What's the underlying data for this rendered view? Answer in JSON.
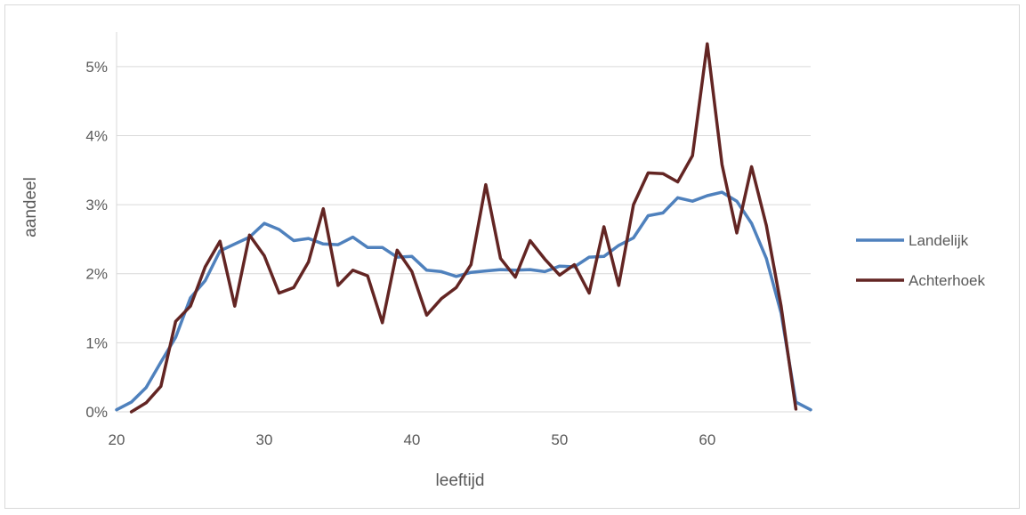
{
  "chart_data": {
    "type": "line",
    "title": "",
    "xlabel": "leeftijd",
    "ylabel": "aandeel",
    "xlim": [
      20,
      67
    ],
    "ylim": [
      0,
      5.5
    ],
    "x_ticks": [
      20,
      30,
      40,
      50,
      60
    ],
    "y_ticks": [
      0,
      1,
      2,
      3,
      4,
      5
    ],
    "x_tick_labels": [
      "20",
      "30",
      "40",
      "50",
      "60"
    ],
    "y_tick_labels": [
      "0%",
      "1%",
      "2%",
      "3%",
      "4%",
      "5%"
    ],
    "y_unit": "%",
    "grid": "horizontal",
    "legend_position": "right",
    "series": [
      {
        "name": "Landelijk",
        "color": "#4f81bd",
        "x": [
          20,
          21,
          22,
          23,
          24,
          25,
          26,
          27,
          28,
          29,
          30,
          31,
          32,
          33,
          34,
          35,
          36,
          37,
          38,
          39,
          40,
          41,
          42,
          43,
          44,
          45,
          46,
          47,
          48,
          49,
          50,
          51,
          52,
          53,
          54,
          55,
          56,
          57,
          58,
          59,
          60,
          61,
          62,
          63,
          64,
          65,
          66,
          67
        ],
        "values": [
          0.03,
          0.14,
          0.35,
          0.72,
          1.08,
          1.65,
          1.9,
          2.33,
          2.43,
          2.53,
          2.73,
          2.64,
          2.48,
          2.51,
          2.43,
          2.42,
          2.53,
          2.38,
          2.38,
          2.24,
          2.25,
          2.05,
          2.03,
          1.96,
          2.02,
          2.04,
          2.06,
          2.05,
          2.06,
          2.03,
          2.11,
          2.1,
          2.24,
          2.25,
          2.41,
          2.52,
          2.84,
          2.88,
          3.1,
          3.05,
          3.13,
          3.18,
          3.05,
          2.73,
          2.22,
          1.43,
          0.14,
          0.03
        ]
      },
      {
        "name": "Achterhoek",
        "color": "#632523",
        "x": [
          21,
          22,
          23,
          24,
          25,
          26,
          27,
          28,
          29,
          30,
          31,
          32,
          33,
          34,
          35,
          36,
          37,
          38,
          39,
          40,
          41,
          42,
          43,
          44,
          45,
          46,
          47,
          48,
          49,
          50,
          51,
          52,
          53,
          54,
          55,
          56,
          57,
          58,
          59,
          60,
          61,
          62,
          63,
          64,
          65,
          66
        ],
        "values": [
          0.0,
          0.13,
          0.37,
          1.31,
          1.53,
          2.1,
          2.47,
          1.53,
          2.56,
          2.26,
          1.72,
          1.8,
          2.17,
          2.94,
          1.83,
          2.05,
          1.97,
          1.29,
          2.34,
          2.03,
          1.4,
          1.64,
          1.8,
          2.13,
          3.29,
          2.22,
          1.95,
          2.48,
          2.21,
          1.98,
          2.13,
          1.72,
          2.68,
          1.83,
          3.0,
          3.46,
          3.45,
          3.33,
          3.71,
          5.33,
          3.58,
          2.59,
          3.55,
          2.7,
          1.53,
          0.04
        ]
      }
    ]
  }
}
